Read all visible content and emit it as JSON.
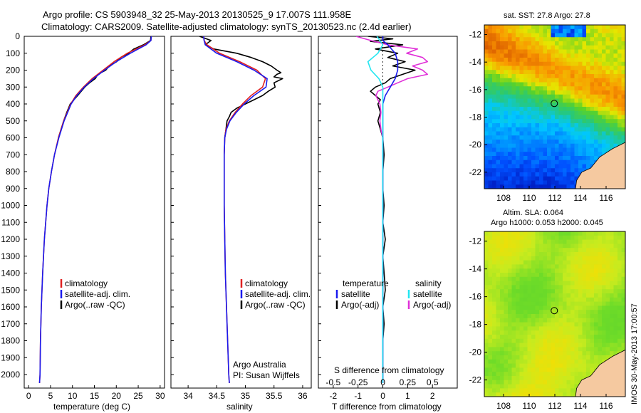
{
  "figure": {
    "title_line1": "Argo profile: CS 5903948_32 25-May-2013 20130525_9 17.007S 111.958E",
    "title_line2": "Climatology: CARS2009. Satellite-adjusted climatology: synTS_20130523.nc (2.4d earlier)",
    "footer_stamp": "IMOS 30-May-2013 17:00:57"
  },
  "colors": {
    "climatology": "#e02020",
    "satellite": "#1a1aee",
    "argo": "#000000",
    "salinity_sat": "#22e6f0",
    "salinity_argo": "#e030d8"
  },
  "depth_ticks": [
    0,
    100,
    200,
    300,
    400,
    500,
    600,
    700,
    800,
    900,
    1000,
    1100,
    1200,
    1300,
    1400,
    1500,
    1600,
    1700,
    1800,
    1900,
    2000
  ],
  "chart_data": [
    {
      "type": "line",
      "panel": "temperature",
      "xlabel": "temperature (deg C)",
      "xlim": [
        -1,
        31
      ],
      "ylim": [
        0,
        2080
      ],
      "xticks": [
        0,
        5,
        10,
        15,
        20,
        25,
        30
      ],
      "legend": [
        "climatology",
        "satellite-adj. clim.",
        "Argo(..raw -QC)"
      ],
      "series": [
        {
          "name": "climatology",
          "depth": [
            0,
            25,
            50,
            75,
            100,
            150,
            200,
            250,
            300,
            350,
            400,
            500,
            600,
            700,
            800,
            900,
            1000,
            1200,
            1400,
            1600,
            1800,
            2000,
            2050
          ],
          "values": [
            28.0,
            27.9,
            26.5,
            24.5,
            22.5,
            19.5,
            17.0,
            14.5,
            12.5,
            10.8,
            9.6,
            8.0,
            6.8,
            5.9,
            5.2,
            4.6,
            4.2,
            3.6,
            3.2,
            2.9,
            2.7,
            2.6,
            2.5
          ]
        },
        {
          "name": "satellite-adj. clim.",
          "depth": [
            0,
            25,
            50,
            75,
            100,
            150,
            200,
            250,
            300,
            350,
            400,
            500,
            600,
            700,
            800,
            900,
            1000,
            1200,
            1400,
            1600,
            1800,
            2000,
            2050
          ],
          "values": [
            28.0,
            27.9,
            26.8,
            25.0,
            23.2,
            20.0,
            17.3,
            14.8,
            12.7,
            11.0,
            9.7,
            8.1,
            6.9,
            5.9,
            5.2,
            4.6,
            4.2,
            3.6,
            3.2,
            2.9,
            2.7,
            2.6,
            2.5
          ]
        },
        {
          "name": "Argo(..raw -QC)",
          "depth": [
            0,
            25,
            50,
            75,
            100,
            125,
            150,
            175,
            200,
            225,
            250,
            275,
            300,
            350,
            400,
            450,
            500,
            600
          ],
          "values": [
            27.9,
            27.8,
            26.2,
            24.0,
            22.8,
            21.0,
            20.1,
            18.4,
            17.6,
            15.8,
            15.2,
            13.9,
            12.8,
            11.2,
            9.5,
            8.7,
            8.0,
            6.8
          ]
        }
      ]
    },
    {
      "type": "line",
      "panel": "salinity",
      "xlabel": "salinity",
      "xlim": [
        33.7,
        36.15
      ],
      "ylim": [
        0,
        2080
      ],
      "xticks": [
        34,
        34.5,
        35,
        35.5,
        36
      ],
      "legend": [
        "climatology",
        "satellite-adj. clim.",
        "Argo(..raw -QC)"
      ],
      "annotation": [
        "Argo Australia",
        "PI: Susan Wijffels"
      ],
      "series": [
        {
          "name": "climatology",
          "depth": [
            0,
            25,
            50,
            100,
            150,
            200,
            250,
            300,
            350,
            400,
            450,
            500,
            550,
            600,
            700,
            800,
            1000,
            1200,
            1400,
            1600,
            1800,
            2000,
            2050
          ],
          "values": [
            34.27,
            34.28,
            34.33,
            34.55,
            34.9,
            35.2,
            35.35,
            35.3,
            35.1,
            34.95,
            34.82,
            34.72,
            34.66,
            34.64,
            34.63,
            34.63,
            34.63,
            34.64,
            34.65,
            34.67,
            34.69,
            34.71,
            34.72
          ]
        },
        {
          "name": "satellite-adj. clim.",
          "depth": [
            0,
            25,
            50,
            100,
            150,
            200,
            250,
            300,
            350,
            400,
            450,
            500,
            550,
            600,
            700,
            800,
            1000,
            1200,
            1400,
            1600,
            1800,
            2000,
            2050
          ],
          "values": [
            34.27,
            34.28,
            34.3,
            34.5,
            34.85,
            35.15,
            35.38,
            35.36,
            35.15,
            34.98,
            34.84,
            34.73,
            34.67,
            34.64,
            34.63,
            34.63,
            34.63,
            34.64,
            34.65,
            34.67,
            34.69,
            34.71,
            34.72
          ]
        },
        {
          "name": "Argo(..raw -QC)",
          "depth": [
            0,
            25,
            50,
            75,
            100,
            125,
            150,
            175,
            200,
            215,
            225,
            240,
            250,
            275,
            300,
            325,
            350,
            375,
            400,
            425,
            450,
            475,
            500,
            550,
            600
          ],
          "values": [
            34.2,
            34.4,
            34.3,
            34.45,
            34.85,
            35.1,
            35.3,
            35.45,
            35.55,
            35.62,
            35.55,
            35.5,
            35.65,
            35.5,
            35.52,
            35.4,
            35.3,
            35.15,
            35.0,
            34.85,
            34.75,
            34.72,
            34.68,
            34.66,
            34.64
          ]
        }
      ]
    },
    {
      "type": "line",
      "panel": "difference",
      "xlabel": "T difference from climatology",
      "top_xlabel": "S difference from climatology",
      "xlim": [
        -2.6,
        3.0
      ],
      "ylim": [
        0,
        2080
      ],
      "xticks": [
        -2,
        -1,
        0,
        1,
        2
      ],
      "top_xticks": [
        "-0.5",
        "-0.25",
        "0",
        "0.25",
        "0.5"
      ],
      "legend_title_t": "temperature",
      "legend_title_s": "salinity",
      "legend": [
        "satellite",
        "Argo(-adj)",
        "satellite",
        "Argo(-adj)"
      ],
      "series": [
        {
          "name": "T satellite",
          "depth": [
            0,
            25,
            50,
            100,
            150,
            200,
            250,
            300,
            350,
            400,
            500,
            600,
            700,
            800,
            1000,
            1500,
            2050
          ],
          "values": [
            0.0,
            0.0,
            0.2,
            0.5,
            0.6,
            0.6,
            0.5,
            0.3,
            0.1,
            0.0,
            0.0,
            0.0,
            0.0,
            0.0,
            0.0,
            0.0,
            0.0
          ]
        },
        {
          "name": "T Argo(-adj)",
          "depth": [
            0,
            15,
            30,
            50,
            75,
            100,
            125,
            150,
            175,
            200,
            225,
            250,
            275,
            300,
            325,
            350,
            375,
            400,
            450,
            500,
            550,
            600,
            700,
            800,
            900,
            1000,
            1100,
            1200,
            1300,
            1400,
            1500,
            1600,
            1700,
            1800,
            1900,
            2000,
            2050
          ],
          "values": [
            -0.6,
            0.4,
            -0.5,
            0.8,
            -0.3,
            0.6,
            0.2,
            0.9,
            0.4,
            1.3,
            0.8,
            0.3,
            0.1,
            -0.3,
            -0.5,
            -0.3,
            -0.1,
            -0.2,
            -0.1,
            -0.2,
            -0.1,
            0.0,
            0.05,
            0.0,
            0.0,
            0.05,
            0.0,
            0.1,
            0.0,
            0.05,
            0.1,
            0.0,
            0.05,
            0.0,
            0.0,
            0.0,
            0.0
          ]
        },
        {
          "name": "S satellite",
          "depth": [
            0,
            25,
            50,
            100,
            150,
            200,
            250,
            300,
            350,
            400,
            500,
            600,
            800,
            1000,
            1500,
            2050
          ],
          "values": [
            -0.06,
            -0.03,
            0.0,
            -0.05,
            -0.15,
            -0.12,
            -0.04,
            0.0,
            0.0,
            0.0,
            0.0,
            0.0,
            0.0,
            0.0,
            0.0,
            0.0
          ]
        },
        {
          "name": "S Argo(-adj)",
          "depth": [
            0,
            25,
            50,
            75,
            100,
            125,
            150,
            175,
            200,
            225,
            250,
            275,
            300,
            325,
            350,
            375,
            400,
            450,
            500,
            550,
            600,
            700,
            800,
            1000,
            1500,
            2050
          ],
          "values": [
            -0.27,
            -0.12,
            0.05,
            0.35,
            0.24,
            0.4,
            0.45,
            0.3,
            0.4,
            0.45,
            0.25,
            0.15,
            0.05,
            -0.05,
            -0.07,
            -0.05,
            -0.03,
            -0.02,
            -0.03,
            -0.02,
            0.0,
            0.0,
            0.0,
            0.0,
            0.0,
            0.0
          ]
        }
      ]
    },
    {
      "type": "heatmap",
      "panel": "sst_map",
      "title": "sat. SST: 27.8  Argo: 27.8",
      "xticks": [
        108,
        110,
        112,
        114,
        116
      ],
      "yticks": [
        -12,
        -14,
        -16,
        -18,
        -20,
        -22
      ],
      "xlim": [
        106.5,
        117.5
      ],
      "ylim": [
        -23.2,
        -11.3
      ],
      "marker_lon": 111.958,
      "marker_lat": -17.007
    },
    {
      "type": "heatmap",
      "panel": "sla_map",
      "title": "Altim. SLA: 0.064",
      "subtitle": "Argo h1000: 0.053 h2000: 0.045",
      "xticks": [
        108,
        110,
        112,
        114,
        116
      ],
      "yticks": [
        -12,
        -14,
        -16,
        -18,
        -20,
        -22
      ],
      "xlim": [
        106.5,
        117.5
      ],
      "ylim": [
        -23.2,
        -11.3
      ],
      "marker_lon": 111.958,
      "marker_lat": -17.007
    }
  ]
}
